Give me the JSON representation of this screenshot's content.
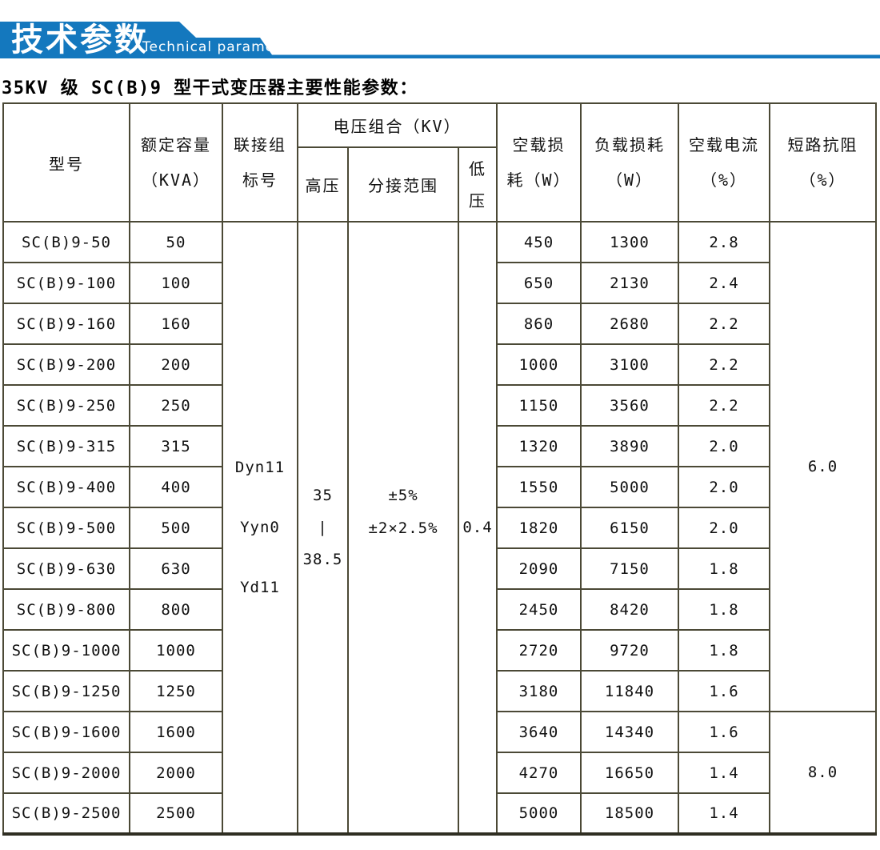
{
  "banner": {
    "title_cn": "技术参数",
    "title_en": "Technical parameter",
    "color": "#1478be"
  },
  "page_title": "35KV 级 SC(B)9 型干式变压器主要性能参数：",
  "table": {
    "headers": {
      "model": "型号",
      "capacity_line1": "额定容量",
      "capacity_line2": "（KVA）",
      "connection_line1": "联接组",
      "connection_line2": "标号",
      "voltage_combo": "电压组合（KV）",
      "hv": "高压",
      "tap_range": "分接范围",
      "lv_line1": "低",
      "lv_line2": "压",
      "no_load_loss_line1": "空载损",
      "no_load_loss_line2": "耗（W）",
      "load_loss_line1": "负载损耗",
      "load_loss_line2": "（W）",
      "no_load_current_line1": "空载电流",
      "no_load_current_line2": "（%）",
      "short_circuit_line1": "短路抗阻",
      "short_circuit_line2": "（%）"
    },
    "merged": {
      "connection_group": [
        "Dyn11",
        "Yyn0",
        "Yd11"
      ],
      "hv_lines": [
        "35",
        "|",
        "38.5"
      ],
      "tap_lines": [
        "±5%",
        "±2×2.5%"
      ],
      "lv": "0.4",
      "short_circuit_rows_1_12": "6.0",
      "short_circuit_rows_13_15": "8.0"
    },
    "rows": [
      {
        "model": "SC(B)9-50",
        "capacity": "50",
        "no_load_loss": "450",
        "load_loss": "1300",
        "no_load_current": "2.8"
      },
      {
        "model": "SC(B)9-100",
        "capacity": "100",
        "no_load_loss": "650",
        "load_loss": "2130",
        "no_load_current": "2.4"
      },
      {
        "model": "SC(B)9-160",
        "capacity": "160",
        "no_load_loss": "860",
        "load_loss": "2680",
        "no_load_current": "2.2"
      },
      {
        "model": "SC(B)9-200",
        "capacity": "200",
        "no_load_loss": "1000",
        "load_loss": "3100",
        "no_load_current": "2.2"
      },
      {
        "model": "SC(B)9-250",
        "capacity": "250",
        "no_load_loss": "1150",
        "load_loss": "3560",
        "no_load_current": "2.2"
      },
      {
        "model": "SC(B)9-315",
        "capacity": "315",
        "no_load_loss": "1320",
        "load_loss": "3890",
        "no_load_current": "2.0"
      },
      {
        "model": "SC(B)9-400",
        "capacity": "400",
        "no_load_loss": "1550",
        "load_loss": "5000",
        "no_load_current": "2.0"
      },
      {
        "model": "SC(B)9-500",
        "capacity": "500",
        "no_load_loss": "1820",
        "load_loss": "6150",
        "no_load_current": "2.0"
      },
      {
        "model": "SC(B)9-630",
        "capacity": "630",
        "no_load_loss": "2090",
        "load_loss": "7150",
        "no_load_current": "1.8"
      },
      {
        "model": "SC(B)9-800",
        "capacity": "800",
        "no_load_loss": "2450",
        "load_loss": "8420",
        "no_load_current": "1.8"
      },
      {
        "model": "SC(B)9-1000",
        "capacity": "1000",
        "no_load_loss": "2720",
        "load_loss": "9720",
        "no_load_current": "1.8"
      },
      {
        "model": "SC(B)9-1250",
        "capacity": "1250",
        "no_load_loss": "3180",
        "load_loss": "11840",
        "no_load_current": "1.6"
      },
      {
        "model": "SC(B)9-1600",
        "capacity": "1600",
        "no_load_loss": "3640",
        "load_loss": "14340",
        "no_load_current": "1.6"
      },
      {
        "model": "SC(B)9-2000",
        "capacity": "2000",
        "no_load_loss": "4270",
        "load_loss": "16650",
        "no_load_current": "1.4"
      },
      {
        "model": "SC(B)9-2500",
        "capacity": "2500",
        "no_load_loss": "5000",
        "load_loss": "18500",
        "no_load_current": "1.4"
      }
    ]
  }
}
